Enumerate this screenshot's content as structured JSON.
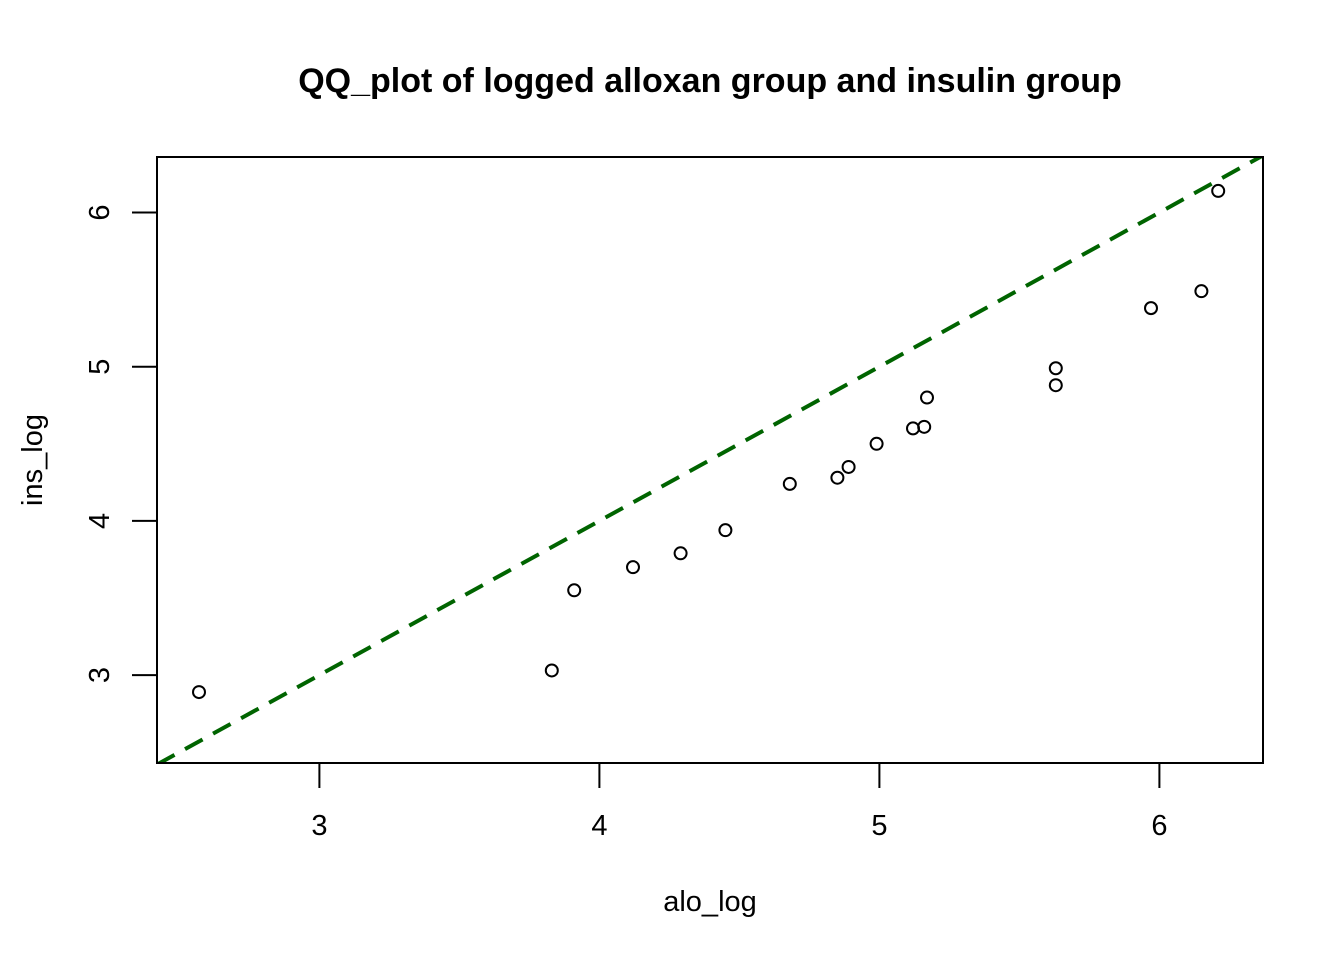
{
  "chart_data": {
    "type": "scatter",
    "title": "QQ_plot of logged alloxan group and insulin group",
    "xlabel": "alo_log",
    "ylabel": "ins_log",
    "xlim": [
      2.42,
      6.37
    ],
    "ylim": [
      2.43,
      6.36
    ],
    "xticks": [
      3,
      4,
      5,
      6
    ],
    "yticks": [
      3,
      4,
      5,
      6
    ],
    "grid": false,
    "reference_line": {
      "intercept": 0,
      "slope": 1,
      "style": "dashed",
      "color": "#006400"
    },
    "points": [
      {
        "x": 2.57,
        "y": 2.89
      },
      {
        "x": 3.83,
        "y": 3.03
      },
      {
        "x": 3.91,
        "y": 3.55
      },
      {
        "x": 4.12,
        "y": 3.7
      },
      {
        "x": 4.29,
        "y": 3.79
      },
      {
        "x": 4.45,
        "y": 3.94
      },
      {
        "x": 4.68,
        "y": 4.24
      },
      {
        "x": 4.85,
        "y": 4.28
      },
      {
        "x": 4.89,
        "y": 4.35
      },
      {
        "x": 4.99,
        "y": 4.5
      },
      {
        "x": 5.12,
        "y": 4.6
      },
      {
        "x": 5.16,
        "y": 4.61
      },
      {
        "x": 5.17,
        "y": 4.8
      },
      {
        "x": 5.63,
        "y": 4.88
      },
      {
        "x": 5.63,
        "y": 4.99
      },
      {
        "x": 5.97,
        "y": 5.38
      },
      {
        "x": 6.15,
        "y": 5.49
      },
      {
        "x": 6.21,
        "y": 6.14
      }
    ]
  }
}
